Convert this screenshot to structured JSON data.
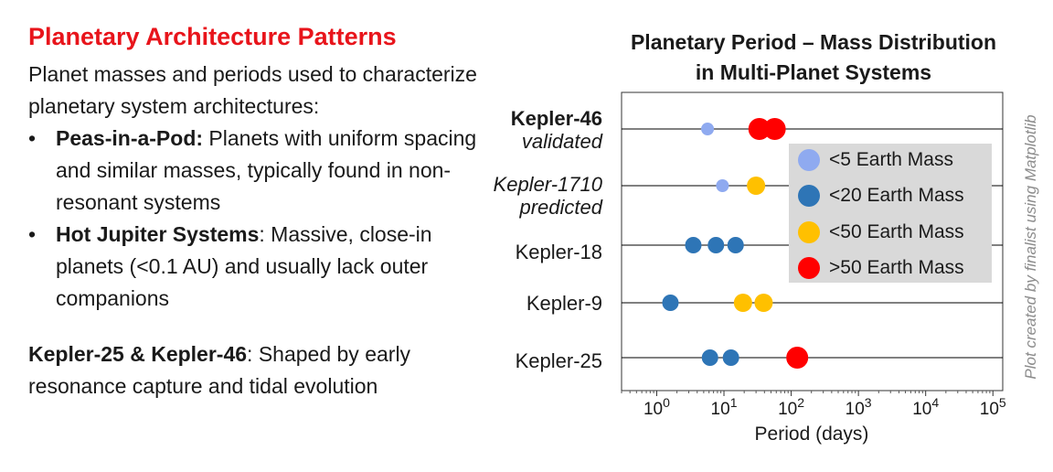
{
  "left": {
    "title": "Planetary Architecture Patterns",
    "intro": "Planet masses and periods used to characterize planetary system architectures:",
    "bullets": [
      {
        "bullet": "•",
        "bold": "Peas-in-a-Pod:",
        "text": " Planets with uniform spacing and similar masses, typically found in non-resonant systems"
      },
      {
        "bullet": "•",
        "bold": "Hot Jupiter Systems",
        "text": ": Massive, close-in planets (<0.1 AU) and usually lack outer companions"
      }
    ],
    "note_bold": "Kepler-25 & Kepler-46",
    "note_text": ": Shaped by early resonance capture and tidal evolution"
  },
  "watermark": "Plot created by finalist using Matplotlib",
  "colors": {
    "lt5": "#8faaf0",
    "lt20": "#2e75b6",
    "lt50": "#ffc000",
    "gt50": "#ff0000",
    "legend_bg": "#d9d9d9",
    "title_red": "#e8141b"
  },
  "chart_data": {
    "type": "scatter",
    "title_line1": "Planetary Period – Mass Distribution",
    "title_line2": "in Multi-Planet Systems",
    "xlabel": "Period (days)",
    "xscale": "log",
    "xlim": [
      0.3,
      140000
    ],
    "x_ticks": [
      {
        "value": 1,
        "base": "10",
        "exp": "0"
      },
      {
        "value": 10,
        "base": "10",
        "exp": "1"
      },
      {
        "value": 100,
        "base": "10",
        "exp": "2"
      },
      {
        "value": 1000,
        "base": "10",
        "exp": "3"
      },
      {
        "value": 10000,
        "base": "10",
        "exp": "4"
      },
      {
        "value": 100000,
        "base": "10",
        "exp": "5"
      }
    ],
    "legend": {
      "placement": "upper-right",
      "entries": [
        {
          "label": "<5 Earth Mass",
          "category": "lt5"
        },
        {
          "label": "<20 Earth Mass",
          "category": "lt20"
        },
        {
          "label": "<50 Earth Mass",
          "category": "lt50"
        },
        {
          "label": ">50 Earth Mass",
          "category": "gt50"
        }
      ]
    },
    "systems": [
      {
        "line1": "Kepler-46",
        "line2": "validated",
        "style": "bold-italic",
        "planets": [
          {
            "period": 5.7,
            "category": "lt5"
          },
          {
            "period": 33.6,
            "category": "gt50"
          },
          {
            "period": 57.0,
            "category": "gt50"
          }
        ]
      },
      {
        "line1": "Kepler-1710",
        "line2": "predicted",
        "style": "italic",
        "planets": [
          {
            "period": 9.5,
            "category": "lt5"
          },
          {
            "period": 30.0,
            "category": "lt50"
          }
        ]
      },
      {
        "line1": "Kepler-18",
        "line2": "",
        "style": "plain",
        "planets": [
          {
            "period": 3.5,
            "category": "lt20"
          },
          {
            "period": 7.6,
            "category": "lt20"
          },
          {
            "period": 14.9,
            "category": "lt20"
          }
        ]
      },
      {
        "line1": "Kepler-9",
        "line2": "",
        "style": "plain",
        "planets": [
          {
            "period": 1.6,
            "category": "lt20"
          },
          {
            "period": 19.2,
            "category": "lt50"
          },
          {
            "period": 38.9,
            "category": "lt50"
          }
        ]
      },
      {
        "line1": "Kepler-25",
        "line2": "",
        "style": "plain",
        "planets": [
          {
            "period": 6.2,
            "category": "lt20"
          },
          {
            "period": 12.7,
            "category": "lt20"
          },
          {
            "period": 123.0,
            "category": "gt50"
          }
        ]
      }
    ]
  }
}
